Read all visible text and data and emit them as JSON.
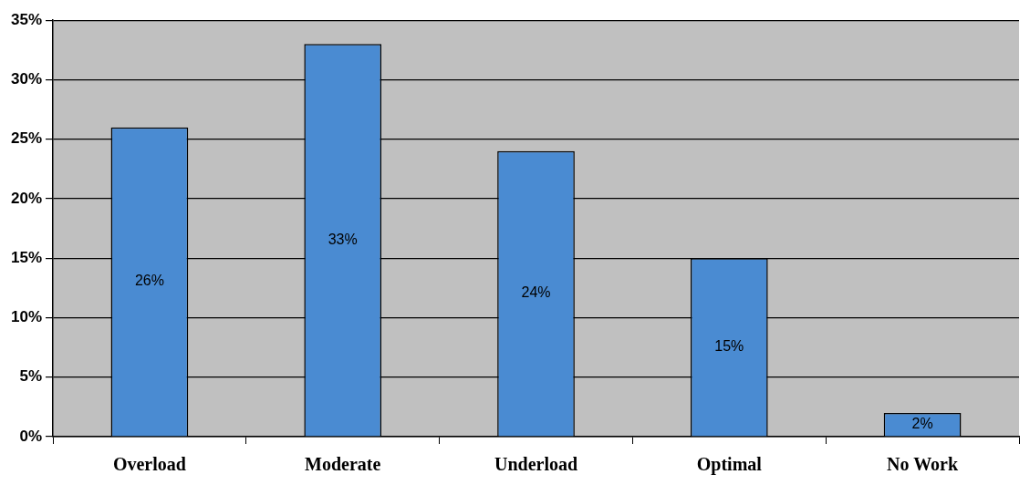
{
  "chart_data": {
    "type": "bar",
    "categories": [
      "Overload",
      "Moderate",
      "Underload",
      "Optimal",
      "No Work"
    ],
    "values": [
      26,
      33,
      24,
      15,
      2
    ],
    "value_labels": [
      "26%",
      "33%",
      "24%",
      "15%",
      "2%"
    ],
    "color": "#4a8bd2",
    "ylim": [
      0,
      35
    ],
    "yticks": [
      {
        "value": 0,
        "label": "0%"
      },
      {
        "value": 5,
        "label": "5%"
      },
      {
        "value": 10,
        "label": "10%"
      },
      {
        "value": 15,
        "label": "15%"
      },
      {
        "value": 20,
        "label": "20%"
      },
      {
        "value": 25,
        "label": "25%"
      },
      {
        "value": 30,
        "label": "30%"
      },
      {
        "value": 35,
        "label": "35%"
      }
    ],
    "grid": "y",
    "legend": false
  }
}
